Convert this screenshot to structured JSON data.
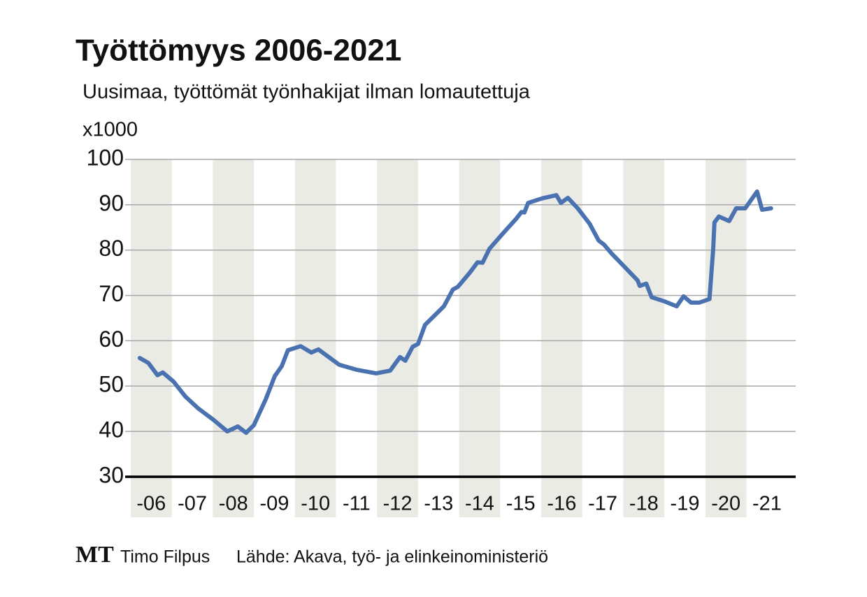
{
  "chart_data": {
    "type": "line",
    "title": "Työttömyys 2006-2021",
    "subtitle": "Uusimaa, työttömät työnhakijat ilman lomautettuja",
    "y_unit": "x1000",
    "logo": "MT",
    "author": "Timo Filpus",
    "source": "Lähde: Akava, työ- ja elinkeinoministeriö",
    "x": [
      2006.22,
      2006.43,
      2006.65,
      2006.78,
      2007.04,
      2007.33,
      2007.64,
      2008.01,
      2008.35,
      2008.61,
      2008.81,
      2009.0,
      2009.29,
      2009.51,
      2009.68,
      2009.83,
      2010.14,
      2010.4,
      2010.57,
      2011.08,
      2011.5,
      2011.98,
      2012.32,
      2012.56,
      2012.69,
      2012.87,
      2013.0,
      2013.17,
      2013.63,
      2013.85,
      2013.97,
      2014.26,
      2014.45,
      2014.57,
      2014.74,
      2015.08,
      2015.39,
      2015.52,
      2015.59,
      2015.68,
      2016.02,
      2016.37,
      2016.48,
      2016.65,
      2016.89,
      2017.18,
      2017.4,
      2017.53,
      2017.72,
      2018.0,
      2018.35,
      2018.4,
      2018.56,
      2018.69,
      2019.0,
      2019.3,
      2019.47,
      2019.65,
      2019.85,
      2020.1,
      2020.19,
      2020.22,
      2020.33,
      2020.58,
      2020.75,
      2020.97,
      2021.26,
      2021.38,
      2021.6
    ],
    "series": [
      {
        "name": "Työttömät",
        "color": "#4a72b0",
        "values": [
          56.2,
          55.1,
          52.4,
          53,
          51,
          47.7,
          45.1,
          42.6,
          40,
          41.1,
          39.7,
          41.4,
          47.1,
          52.2,
          54.4,
          57.9,
          58.8,
          57.4,
          58.1,
          54.7,
          53.6,
          52.8,
          53.4,
          56.4,
          55.6,
          58.7,
          59.3,
          63.5,
          67.6,
          71.3,
          71.9,
          75,
          77.3,
          77.2,
          80.3,
          83.8,
          86.9,
          88.4,
          88.3,
          90.4,
          91.4,
          92.1,
          90.4,
          91.5,
          89.2,
          85.8,
          82.1,
          81.2,
          79.2,
          76.6,
          73.3,
          72.1,
          72.6,
          69.6,
          68.7,
          67.6,
          69.8,
          68.4,
          68.4,
          69.2,
          80.2,
          86.1,
          87.4,
          86.4,
          89.2,
          89.2,
          92.9,
          88.9,
          89.2
        ]
      }
    ],
    "xlim": [
      2006,
      2022.2
    ],
    "xticks": [
      {
        "value": 2006.5,
        "label": "-06"
      },
      {
        "value": 2007.5,
        "label": "-07"
      },
      {
        "value": 2008.5,
        "label": "-08"
      },
      {
        "value": 2009.5,
        "label": "-09"
      },
      {
        "value": 2010.5,
        "label": "-10"
      },
      {
        "value": 2011.5,
        "label": "-11"
      },
      {
        "value": 2012.5,
        "label": "-12"
      },
      {
        "value": 2013.5,
        "label": "-13"
      },
      {
        "value": 2014.5,
        "label": "-14"
      },
      {
        "value": 2015.5,
        "label": "-15"
      },
      {
        "value": 2016.5,
        "label": "-16"
      },
      {
        "value": 2017.5,
        "label": "-17"
      },
      {
        "value": 2018.5,
        "label": "-18"
      },
      {
        "value": 2019.5,
        "label": "-19"
      },
      {
        "value": 2020.5,
        "label": "-20"
      },
      {
        "value": 2021.5,
        "label": "-21"
      }
    ],
    "ylim": [
      30,
      100
    ],
    "yticks": [
      30,
      40,
      50,
      60,
      70,
      80,
      90,
      100
    ],
    "grid": true
  }
}
